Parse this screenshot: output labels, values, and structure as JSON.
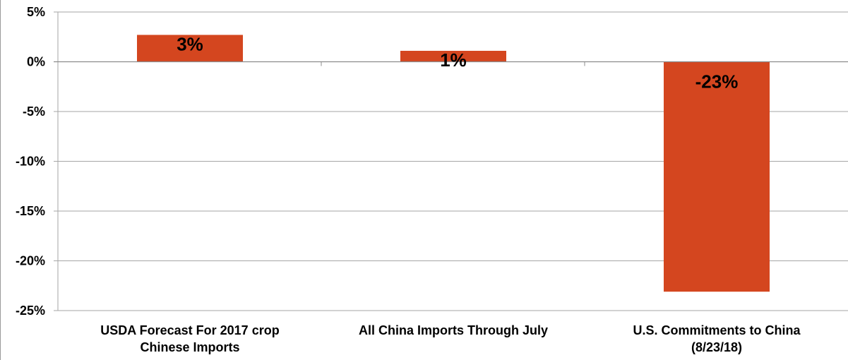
{
  "chart_data": {
    "type": "bar",
    "categories": [
      [
        "USDA Forecast For 2017  crop",
        "Chinese Imports"
      ],
      [
        "All China Imports Through July"
      ],
      [
        "U.S. Commitments to China",
        "(8/23/18)"
      ]
    ],
    "values": [
      2.7,
      1.1,
      -23.1
    ],
    "data_labels": [
      "3%",
      "1%",
      "-23%"
    ],
    "y_ticks": [
      5,
      0,
      -5,
      -10,
      -15,
      -20,
      -25
    ],
    "y_tick_labels": [
      "5%",
      "0%",
      "-5%",
      "-10%",
      "-15%",
      "-20%",
      "-25%"
    ],
    "ylim": [
      -25,
      5
    ],
    "grid": true,
    "legend": "none",
    "bar_color": "#d4461f",
    "grid_color": "#a6a6a6",
    "title": "",
    "xlabel": "",
    "ylabel": ""
  }
}
